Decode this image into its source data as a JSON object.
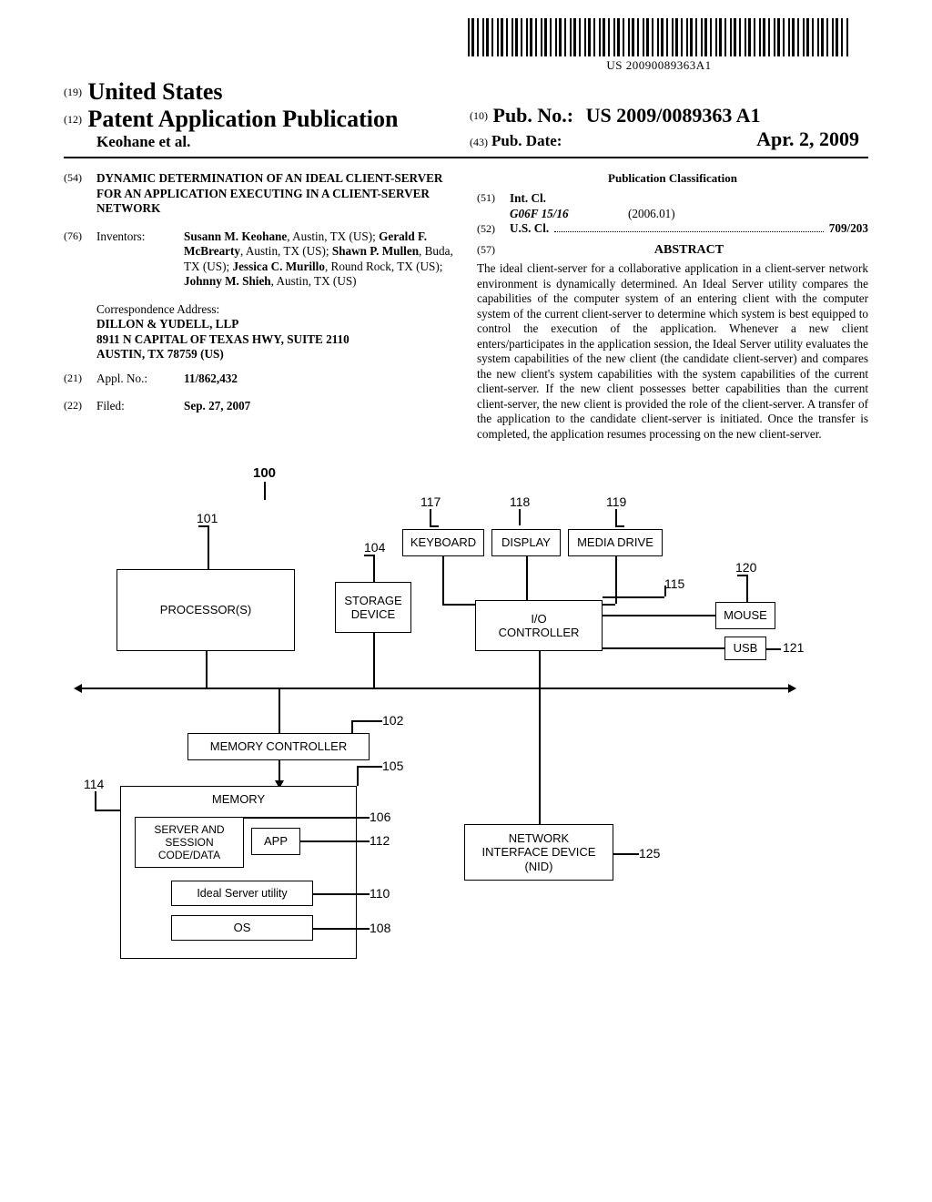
{
  "barcode": {
    "text": "US 20090089363A1"
  },
  "header": {
    "code19": "(19)",
    "country": "United States",
    "code12": "(12)",
    "pubType": "Patent Application Publication",
    "authors": "Keohane et al.",
    "code10": "(10)",
    "pubNoLabel": "Pub. No.:",
    "pubNo": "US 2009/0089363 A1",
    "code43": "(43)",
    "pubDateLabel": "Pub. Date:",
    "pubDate": "Apr. 2, 2009"
  },
  "left": {
    "code54": "(54)",
    "title": "DYNAMIC DETERMINATION OF AN IDEAL CLIENT-SERVER FOR AN APPLICATION EXECUTING IN A CLIENT-SERVER NETWORK",
    "code76": "(76)",
    "inventorsLabel": "Inventors:",
    "inventorsHtml": "<b>Susann M. Keohane</b>, Austin, TX (US); <b>Gerald F. McBrearty</b>, Austin, TX (US); <b>Shawn P. Mullen</b>, Buda, TX (US); <b>Jessica C. Murillo</b>, Round Rock, TX (US); <b>Johnny M. Shieh</b>, Austin, TX (US)",
    "corrLabel": "Correspondence Address:",
    "corrLines": [
      "DILLON & YUDELL, LLP",
      "8911 N CAPITAL OF TEXAS HWY, SUITE 2110",
      "AUSTIN, TX 78759 (US)"
    ],
    "code21": "(21)",
    "applNoLabel": "Appl. No.:",
    "applNo": "11/862,432",
    "code22": "(22)",
    "filedLabel": "Filed:",
    "filedDate": "Sep. 27, 2007"
  },
  "right": {
    "pubClassTitle": "Publication Classification",
    "code51": "(51)",
    "intClLabel": "Int. Cl.",
    "intClCode": "G06F 15/16",
    "intClDate": "(2006.01)",
    "code52": "(52)",
    "usClLabel": "U.S. Cl.",
    "usClVal": "709/203",
    "code57": "(57)",
    "abstractTitle": "ABSTRACT",
    "abstractBody": "The ideal client-server for a collaborative application in a client-server network environment is dynamically determined. An Ideal Server utility compares the capabilities of the computer system of an entering client with the computer system of the current client-server to determine which system is best equipped to control the execution of the application. Whenever a new client enters/participates in the application session, the Ideal Server utility evaluates the system capabilities of the new client (the candidate client-server) and compares the new client's system capabilities with the system capabilities of the current client-server. If the new client possesses better capabilities than the current client-server, the new client is provided the role of the client-server. A transfer of the application to the candidate client-server is initiated. Once the transfer is completed, the application resumes processing on the new client-server."
  },
  "diagram": {
    "ref100": "100",
    "boxes": {
      "processor": {
        "label": "PROCESSOR(S)",
        "ref": "101"
      },
      "storage": {
        "label": "STORAGE\nDEVICE",
        "ref": "104"
      },
      "keyboard": {
        "label": "KEYBOARD",
        "ref": "117"
      },
      "display": {
        "label": "DISPLAY",
        "ref": "118"
      },
      "media": {
        "label": "MEDIA DRIVE",
        "ref": "119"
      },
      "mouse": {
        "label": "MOUSE",
        "ref": "120"
      },
      "usb": {
        "label": "USB",
        "ref": "121"
      },
      "ioctl": {
        "label": "I/O\nCONTROLLER",
        "ref": "115"
      },
      "memctrl": {
        "label": "MEMORY CONTROLLER",
        "ref": "102"
      },
      "memory": {
        "label": "MEMORY",
        "ref": "114",
        "ref2": "105"
      },
      "session": {
        "label": "SERVER AND\nSESSION\nCODE/DATA",
        "ref": "106"
      },
      "app": {
        "label": "APP",
        "ref": "112"
      },
      "ideal": {
        "label": "Ideal Server utility",
        "ref": "110"
      },
      "os": {
        "label": "OS",
        "ref": "108"
      },
      "nid": {
        "label": "NETWORK\nINTERFACE DEVICE\n(NID)",
        "ref": "125"
      }
    }
  }
}
